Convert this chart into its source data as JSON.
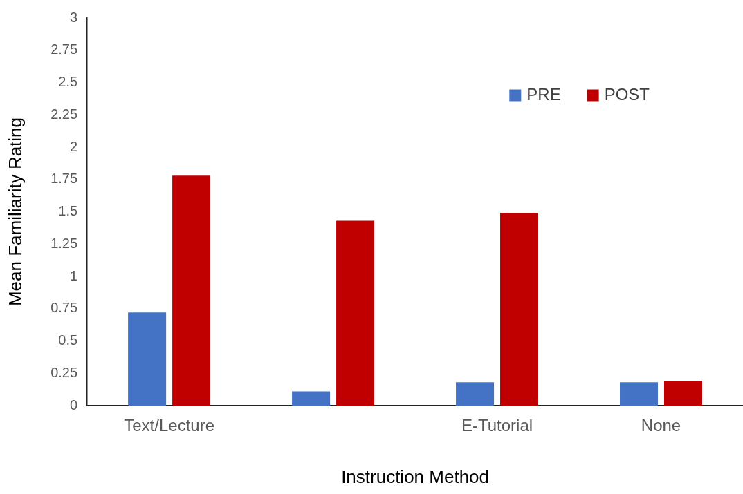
{
  "chart_data": {
    "type": "bar",
    "xlabel": "Instruction Method",
    "ylabel": "Mean Familiarity Rating",
    "categories": [
      "Text/Lecture",
      null,
      "E-Tutorial",
      "None"
    ],
    "series": [
      {
        "name": "PRE",
        "color": "#4472c4",
        "values": [
          0.72,
          0.11,
          0.18,
          0.18
        ]
      },
      {
        "name": "POST",
        "color": "#c00000",
        "values": [
          1.78,
          1.43,
          1.49,
          0.19
        ]
      }
    ],
    "ylim": [
      0,
      3
    ],
    "yticks": [
      0,
      0.25,
      0.5,
      0.75,
      1,
      1.25,
      1.5,
      1.75,
      2,
      2.25,
      2.5,
      2.75,
      3
    ],
    "grid": false,
    "legend": "top right"
  }
}
